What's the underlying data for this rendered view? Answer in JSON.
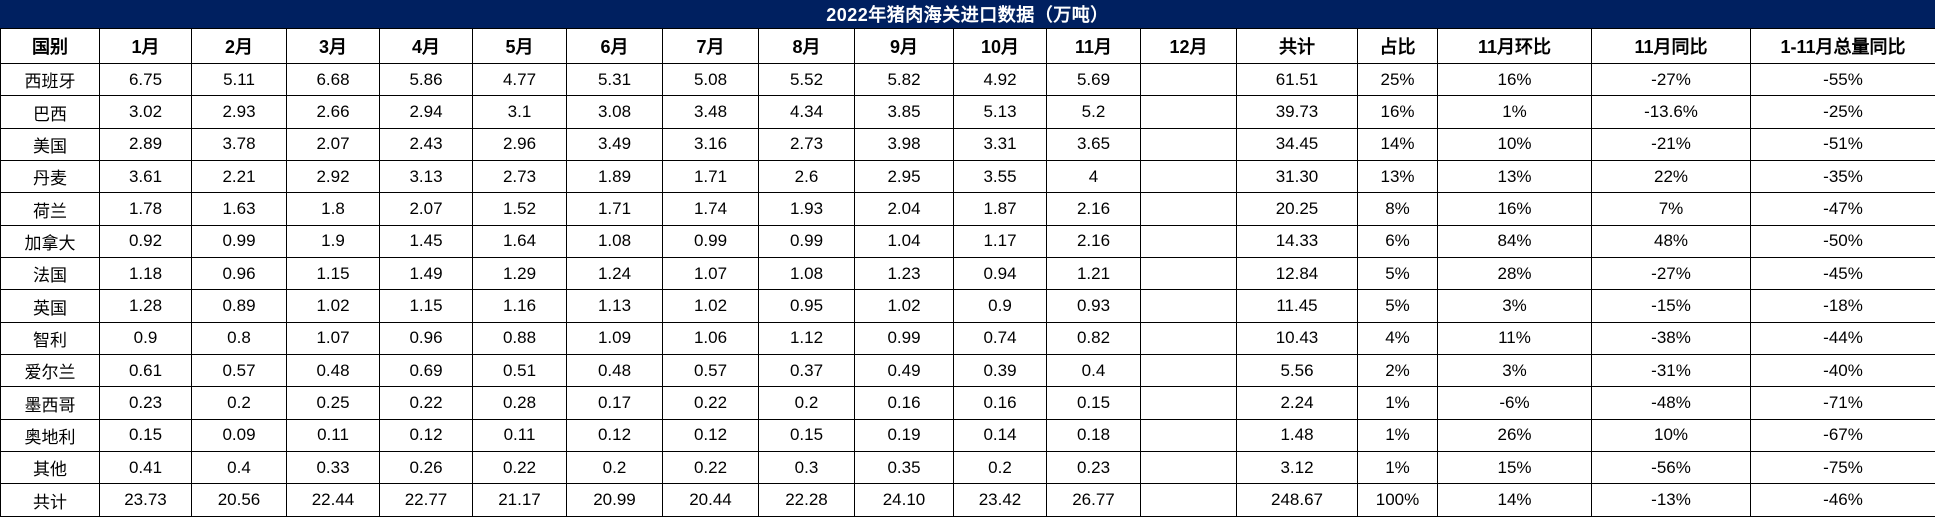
{
  "title": "2022年猪肉海关进口数据（万吨）",
  "colors": {
    "title_bg": "#002060",
    "title_text": "#ffffff",
    "table_border": "#000000",
    "cell_bg": "#ffffff",
    "cell_text": "#000000"
  },
  "chart_data": {
    "type": "table",
    "title": "2022年猪肉海关进口数据（万吨）",
    "unit": "万吨",
    "columns": [
      "国别",
      "1月",
      "2月",
      "3月",
      "4月",
      "5月",
      "6月",
      "7月",
      "8月",
      "9月",
      "10月",
      "11月",
      "12月",
      "共计",
      "占比",
      "11月环比",
      "11月同比",
      "1-11月总量同比"
    ],
    "rows": [
      [
        "西班牙",
        "6.75",
        "5.11",
        "6.68",
        "5.86",
        "4.77",
        "5.31",
        "5.08",
        "5.52",
        "5.82",
        "4.92",
        "5.69",
        "",
        "61.51",
        "25%",
        "16%",
        "-27%",
        "-55%"
      ],
      [
        "巴西",
        "3.02",
        "2.93",
        "2.66",
        "2.94",
        "3.1",
        "3.08",
        "3.48",
        "4.34",
        "3.85",
        "5.13",
        "5.2",
        "",
        "39.73",
        "16%",
        "1%",
        "-13.6%",
        "-25%"
      ],
      [
        "美国",
        "2.89",
        "3.78",
        "2.07",
        "2.43",
        "2.96",
        "3.49",
        "3.16",
        "2.73",
        "3.98",
        "3.31",
        "3.65",
        "",
        "34.45",
        "14%",
        "10%",
        "-21%",
        "-51%"
      ],
      [
        "丹麦",
        "3.61",
        "2.21",
        "2.92",
        "3.13",
        "2.73",
        "1.89",
        "1.71",
        "2.6",
        "2.95",
        "3.55",
        "4",
        "",
        "31.30",
        "13%",
        "13%",
        "22%",
        "-35%"
      ],
      [
        "荷兰",
        "1.78",
        "1.63",
        "1.8",
        "2.07",
        "1.52",
        "1.71",
        "1.74",
        "1.93",
        "2.04",
        "1.87",
        "2.16",
        "",
        "20.25",
        "8%",
        "16%",
        "7%",
        "-47%"
      ],
      [
        "加拿大",
        "0.92",
        "0.99",
        "1.9",
        "1.45",
        "1.64",
        "1.08",
        "0.99",
        "0.99",
        "1.04",
        "1.17",
        "2.16",
        "",
        "14.33",
        "6%",
        "84%",
        "48%",
        "-50%"
      ],
      [
        "法国",
        "1.18",
        "0.96",
        "1.15",
        "1.49",
        "1.29",
        "1.24",
        "1.07",
        "1.08",
        "1.23",
        "0.94",
        "1.21",
        "",
        "12.84",
        "5%",
        "28%",
        "-27%",
        "-45%"
      ],
      [
        "英国",
        "1.28",
        "0.89",
        "1.02",
        "1.15",
        "1.16",
        "1.13",
        "1.02",
        "0.95",
        "1.02",
        "0.9",
        "0.93",
        "",
        "11.45",
        "5%",
        "3%",
        "-15%",
        "-18%"
      ],
      [
        "智利",
        "0.9",
        "0.8",
        "1.07",
        "0.96",
        "0.88",
        "1.09",
        "1.06",
        "1.12",
        "0.99",
        "0.74",
        "0.82",
        "",
        "10.43",
        "4%",
        "11%",
        "-38%",
        "-44%"
      ],
      [
        "爱尔兰",
        "0.61",
        "0.57",
        "0.48",
        "0.69",
        "0.51",
        "0.48",
        "0.57",
        "0.37",
        "0.49",
        "0.39",
        "0.4",
        "",
        "5.56",
        "2%",
        "3%",
        "-31%",
        "-40%"
      ],
      [
        "墨西哥",
        "0.23",
        "0.2",
        "0.25",
        "0.22",
        "0.28",
        "0.17",
        "0.22",
        "0.2",
        "0.16",
        "0.16",
        "0.15",
        "",
        "2.24",
        "1%",
        "-6%",
        "-48%",
        "-71%"
      ],
      [
        "奥地利",
        "0.15",
        "0.09",
        "0.11",
        "0.12",
        "0.11",
        "0.12",
        "0.12",
        "0.15",
        "0.19",
        "0.14",
        "0.18",
        "",
        "1.48",
        "1%",
        "26%",
        "10%",
        "-67%"
      ],
      [
        "其他",
        "0.41",
        "0.4",
        "0.33",
        "0.26",
        "0.22",
        "0.2",
        "0.22",
        "0.3",
        "0.35",
        "0.2",
        "0.23",
        "",
        "3.12",
        "1%",
        "15%",
        "-56%",
        "-75%"
      ],
      [
        "共计",
        "23.73",
        "20.56",
        "22.44",
        "22.77",
        "21.17",
        "20.99",
        "20.44",
        "22.28",
        "24.10",
        "23.42",
        "26.77",
        "",
        "248.67",
        "100%",
        "14%",
        "-13%",
        "-46%"
      ]
    ]
  }
}
